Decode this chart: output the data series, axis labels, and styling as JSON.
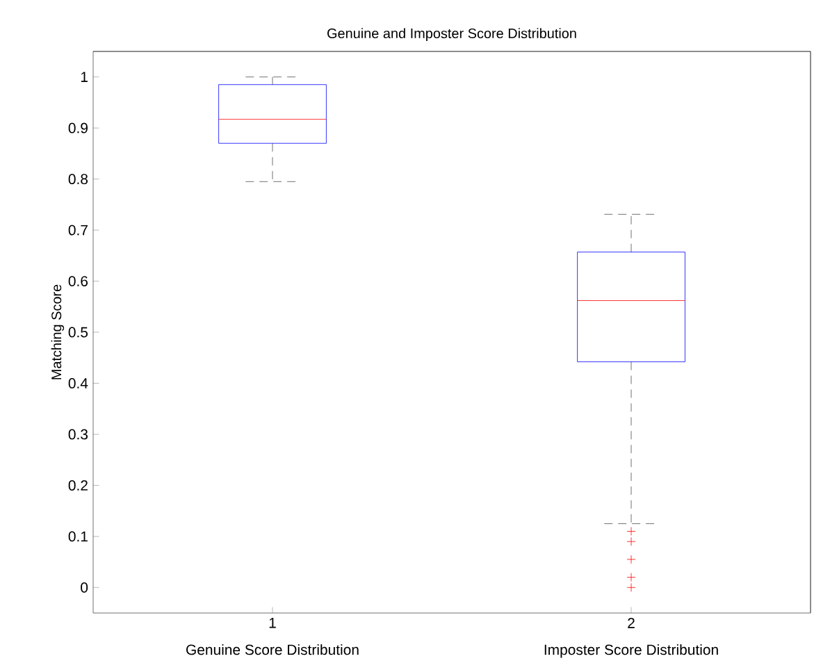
{
  "chart_data": {
    "type": "box",
    "title": "Genuine and Imposter Score Distribution",
    "ylabel": "Matching Score",
    "categories": [
      "1",
      "2"
    ],
    "annotations": [
      "Genuine Score Distribution",
      "Imposter Score Distribution"
    ],
    "series": [
      {
        "color": "#0000ff",
        "boxes": [
          {
            "low": 0.795,
            "q1": 0.87,
            "median": 0.917,
            "q3": 0.985,
            "high": 1.0
          },
          {
            "low": 0.125,
            "q1": 0.442,
            "median": 0.562,
            "q3": 0.657,
            "high": 0.731,
            "outliers": [
              0.11,
              0.09,
              0.055,
              0.02,
              0
            ]
          }
        ]
      }
    ],
    "marker": "cross",
    "ylim": [
      -0.05,
      1.05
    ],
    "yticks": [
      0,
      0.1,
      0.2,
      0.3,
      0.4,
      0.5,
      0.6,
      0.7,
      0.8,
      0.9,
      1
    ]
  }
}
